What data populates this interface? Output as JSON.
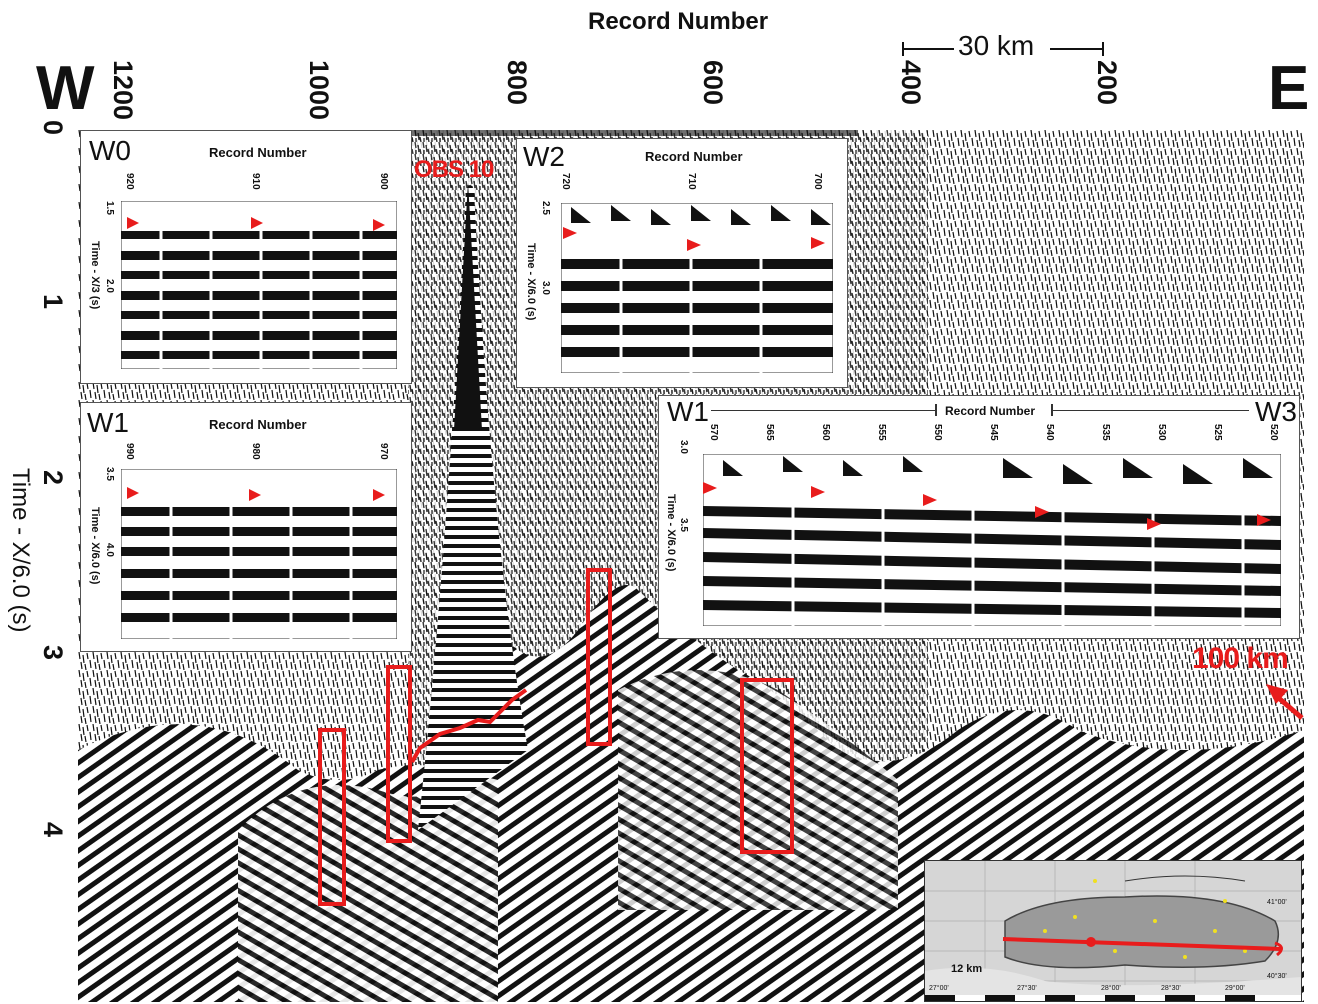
{
  "figure": {
    "top_axis_title": "Record Number",
    "west_label": "W",
    "east_label": "E",
    "top_ticks": [
      "1200",
      "1000",
      "800",
      "600",
      "400",
      "200"
    ],
    "left_ticks": [
      "0",
      "1",
      "2",
      "3",
      "4"
    ],
    "left_axis_title": "Time - X/6.0 (s)",
    "scale_bar": "30 km",
    "obs_label": "OBS 10",
    "distance_label": "100 km"
  },
  "insets": {
    "w0": {
      "label": "W0",
      "title": "Record Number",
      "ticks": [
        "920",
        "910",
        "900"
      ],
      "yticks": [
        "1.5",
        "2.0"
      ],
      "ytitle": "Time - X/3 (s)"
    },
    "w1": {
      "label": "W1",
      "title": "Record Number",
      "ticks": [
        "990",
        "980",
        "970"
      ],
      "yticks": [
        "3.5",
        "4.0"
      ],
      "ytitle": "Time - X/6.0 (s)"
    },
    "w2": {
      "label": "W2",
      "title": "Record Number",
      "ticks": [
        "720",
        "710",
        "700"
      ],
      "yticks": [
        "2.5",
        "3.0"
      ],
      "ytitle": "Time - X/6.0 (s)"
    },
    "w13": {
      "label_left": "W1",
      "label_right": "W3",
      "title": "Record Number",
      "ticks": [
        "570",
        "565",
        "560",
        "555",
        "550",
        "545",
        "540",
        "535",
        "530",
        "525",
        "520"
      ],
      "yticks": [
        "3.0",
        "3.5"
      ],
      "ytitle": "Time - X/6.0 (s)"
    }
  },
  "map_inset": {
    "scale_text": "12 km",
    "lat_labels": [
      "41°00'",
      "40°30'"
    ],
    "lon_labels": [
      "27°00'",
      "27°30'",
      "28°00'",
      "28°30'",
      "29°00'"
    ]
  },
  "colors": {
    "annotation": "#e81c1c",
    "trace": "#111111"
  }
}
